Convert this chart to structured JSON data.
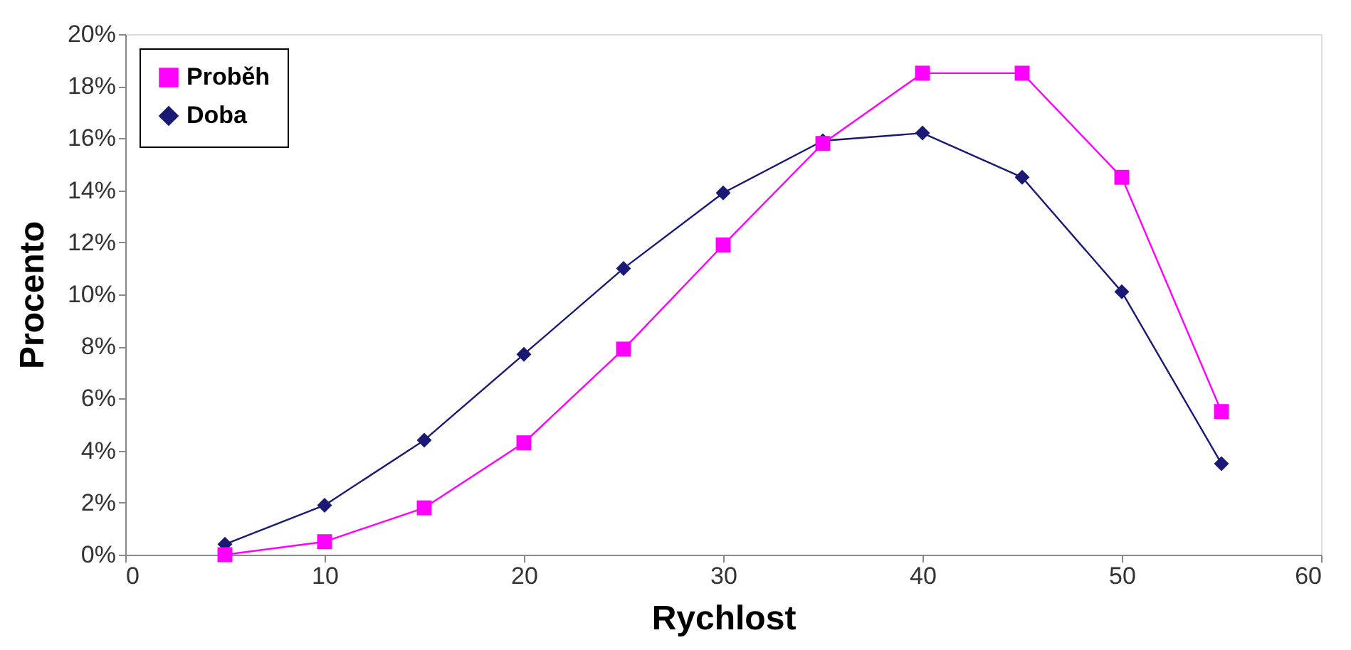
{
  "chart_data": {
    "type": "line",
    "xlabel": "Rychlost",
    "ylabel": "Procento",
    "x": [
      5,
      10,
      15,
      20,
      25,
      30,
      35,
      40,
      45,
      50,
      55
    ],
    "series": [
      {
        "name": "Proběh",
        "color": "#ff00ff",
        "marker": "square",
        "values": [
          0,
          0.5,
          1.8,
          4.3,
          7.9,
          11.9,
          15.8,
          18.5,
          18.5,
          14.5,
          5.5
        ]
      },
      {
        "name": "Doba",
        "color": "#1a1a75",
        "marker": "diamond",
        "values": [
          0.4,
          1.9,
          4.4,
          7.7,
          11.0,
          13.9,
          15.9,
          16.2,
          14.5,
          10.1,
          3.5
        ]
      }
    ],
    "xlim": [
      0,
      60
    ],
    "xticks": [
      0,
      10,
      20,
      30,
      40,
      50,
      60
    ],
    "ylim": [
      0,
      20
    ],
    "yticks": [
      {
        "value": 0,
        "label": "0%"
      },
      {
        "value": 2,
        "label": "2%"
      },
      {
        "value": 4,
        "label": "4%"
      },
      {
        "value": 6,
        "label": "6%"
      },
      {
        "value": 8,
        "label": "8%"
      },
      {
        "value": 10,
        "label": "10%"
      },
      {
        "value": 12,
        "label": "12%"
      },
      {
        "value": 14,
        "label": "14%"
      },
      {
        "value": 16,
        "label": "16%"
      },
      {
        "value": 18,
        "label": "18%"
      },
      {
        "value": 20,
        "label": "20%"
      }
    ],
    "grid": false,
    "legend": "top left",
    "line_style": "solid"
  }
}
